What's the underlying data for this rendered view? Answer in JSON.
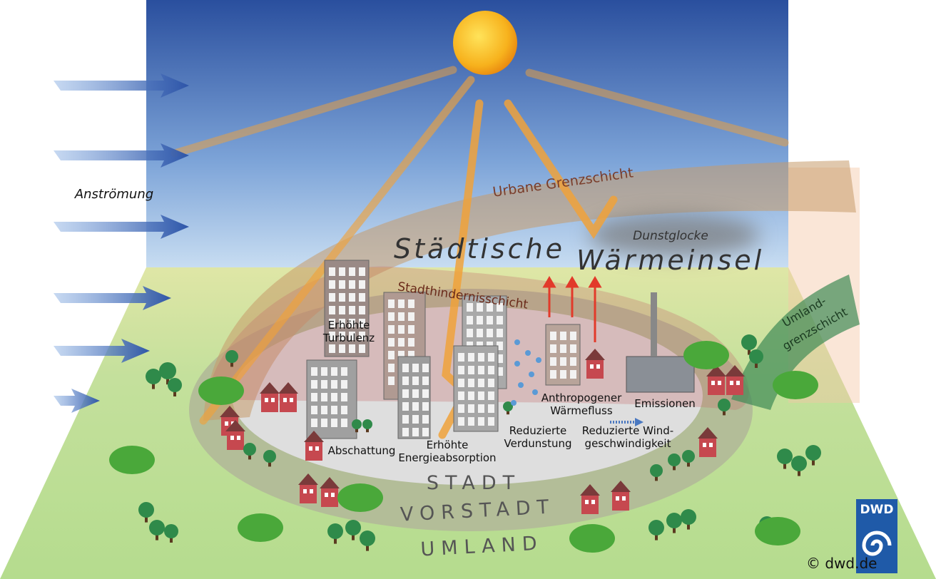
{
  "inflow": "Anströmung",
  "urban_boundary_layer": "Urbane Grenzschicht",
  "haze_dome": "Dunstglocke",
  "heat_island": [
    "Städtische",
    "Wärmeinsel"
  ],
  "canopy_layer": "Stadthindernisschicht",
  "rural_boundary_layer": [
    "Umland-",
    "grenzschicht"
  ],
  "effects": [
    {
      "lines": [
        "Erhöhte",
        "Turbulenz"
      ]
    },
    {
      "lines": [
        "Abschattung"
      ]
    },
    {
      "lines": [
        "Erhöhte",
        "Energieabsorption"
      ]
    },
    {
      "lines": [
        "Reduzierte",
        "Verdunstung"
      ]
    },
    {
      "lines": [
        "Anthropogener",
        "Wärmefluss"
      ]
    },
    {
      "lines": [
        "Emissionen"
      ]
    },
    {
      "lines": [
        "Reduzierte Wind-",
        "geschwindigkeit"
      ]
    }
  ],
  "zones": [
    "STADT",
    "VORSTADT",
    "UMLAND"
  ],
  "logo": "DWD",
  "credit": "© dwd.de"
}
